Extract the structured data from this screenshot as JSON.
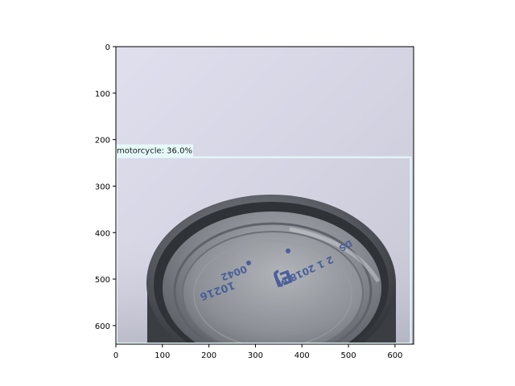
{
  "image": {
    "subject": "metal can lid",
    "lid_imprint": [
      "10216",
      "0042",
      "EJ",
      "2 1 2018 M",
      "DS"
    ]
  },
  "axes": {
    "x_ticks": [
      0,
      100,
      200,
      300,
      400,
      500,
      600
    ],
    "y_ticks": [
      0,
      100,
      200,
      300,
      400,
      500,
      600
    ],
    "xlim": [
      0,
      640
    ],
    "ylim": [
      640,
      0
    ]
  },
  "detection": {
    "label": "motorcycle: 36.0%",
    "box": {
      "x0": 0,
      "y0": 238,
      "x1": 634,
      "y1": 640
    },
    "box_color": "#e6fafa"
  },
  "colors": {
    "background_top": "#dcdcea",
    "background_bottom": "#c9c9d6",
    "can_dark": "#2b2e33",
    "can_mid": "#6a6e73",
    "imprint": "#4a5f9a"
  }
}
